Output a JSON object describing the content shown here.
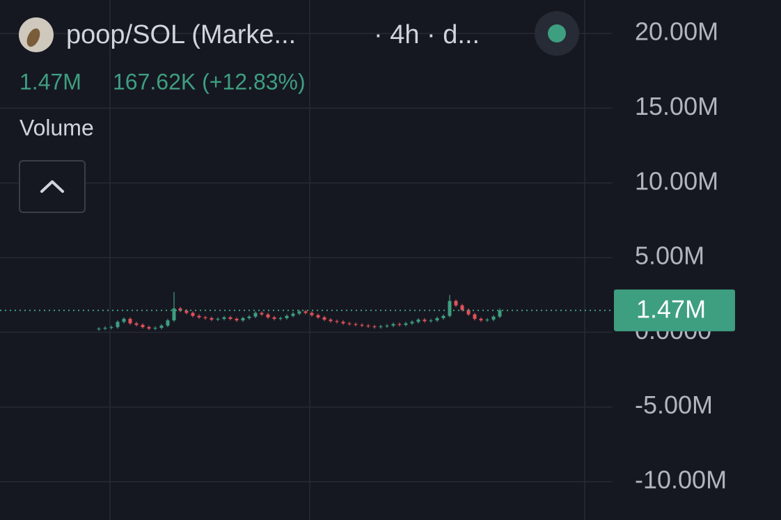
{
  "chart_data": {
    "type": "candlestick",
    "title": "poop/SOL (Marke...",
    "subtitle": "· 4h · d...",
    "header_price": "1.47M",
    "header_change": "167.62K (+12.83%)",
    "indicator": "Volume",
    "up_color": "#3e9e80",
    "down_color": "#e0525a",
    "grid": true,
    "ylim": [
      -12.56,
      22.24
    ],
    "yticks": [
      {
        "value": 20,
        "label": "20.00M"
      },
      {
        "value": 15,
        "label": "15.00M"
      },
      {
        "value": 10,
        "label": "10.00M"
      },
      {
        "value": 5,
        "label": "5.00M"
      },
      {
        "value": 0,
        "label": "0.0000"
      },
      {
        "value": -5,
        "label": "-5.00M"
      },
      {
        "value": -10,
        "label": "-10.00M"
      }
    ],
    "last_price": 1.47,
    "last_price_label": "1.47M",
    "open": [
      0.2,
      0.25,
      0.3,
      0.35,
      0.7,
      0.9,
      0.6,
      0.5,
      0.35,
      0.25,
      0.3,
      0.45,
      0.8,
      1.6,
      1.45,
      1.3,
      1.1,
      1.0,
      0.95,
      0.85,
      0.9,
      1.0,
      0.9,
      0.8,
      0.95,
      1.05,
      1.3,
      1.2,
      1.0,
      0.9,
      0.95,
      1.1,
      1.25,
      1.4,
      1.3,
      1.15,
      1.0,
      0.85,
      0.75,
      0.7,
      0.6,
      0.55,
      0.5,
      0.45,
      0.4,
      0.35,
      0.4,
      0.45,
      0.55,
      0.5,
      0.6,
      0.7,
      0.85,
      0.75,
      0.8,
      0.95,
      1.1,
      2.1,
      1.8,
      1.5,
      1.2,
      0.9,
      0.8,
      0.85,
      1.05
    ],
    "high": [
      0.35,
      0.4,
      0.45,
      0.8,
      1.0,
      1.0,
      0.7,
      0.6,
      0.45,
      0.4,
      0.55,
      0.9,
      2.7,
      1.7,
      1.55,
      1.4,
      1.2,
      1.1,
      1.05,
      1.0,
      1.1,
      1.1,
      1.0,
      1.05,
      1.15,
      1.4,
      1.4,
      1.3,
      1.1,
      1.05,
      1.2,
      1.35,
      1.5,
      1.5,
      1.4,
      1.25,
      1.1,
      0.95,
      0.85,
      0.8,
      0.7,
      0.65,
      0.6,
      0.55,
      0.5,
      0.5,
      0.55,
      0.65,
      0.65,
      0.7,
      0.8,
      0.95,
      0.95,
      0.9,
      1.05,
      1.2,
      2.5,
      2.2,
      1.9,
      1.6,
      1.3,
      1.0,
      0.95,
      1.15,
      1.6
    ],
    "low": [
      0.1,
      0.15,
      0.2,
      0.25,
      0.6,
      0.5,
      0.4,
      0.25,
      0.15,
      0.15,
      0.2,
      0.35,
      0.7,
      1.35,
      1.2,
      1.0,
      0.9,
      0.85,
      0.75,
      0.75,
      0.8,
      0.8,
      0.7,
      0.7,
      0.85,
      0.95,
      1.1,
      0.9,
      0.8,
      0.8,
      0.85,
      1.0,
      1.15,
      1.2,
      1.05,
      0.9,
      0.75,
      0.65,
      0.6,
      0.5,
      0.45,
      0.4,
      0.35,
      0.3,
      0.25,
      0.25,
      0.3,
      0.35,
      0.4,
      0.4,
      0.5,
      0.6,
      0.65,
      0.65,
      0.7,
      0.85,
      1.0,
      1.7,
      1.4,
      1.1,
      0.8,
      0.7,
      0.7,
      0.75,
      0.95
    ],
    "close": [
      0.25,
      0.3,
      0.35,
      0.7,
      0.9,
      0.6,
      0.5,
      0.35,
      0.25,
      0.3,
      0.45,
      0.8,
      1.6,
      1.45,
      1.3,
      1.1,
      1.0,
      0.95,
      0.85,
      0.9,
      1.0,
      0.9,
      0.8,
      0.95,
      1.05,
      1.3,
      1.2,
      1.0,
      0.9,
      0.95,
      1.1,
      1.25,
      1.4,
      1.3,
      1.15,
      1.0,
      0.85,
      0.75,
      0.7,
      0.6,
      0.55,
      0.5,
      0.45,
      0.4,
      0.35,
      0.4,
      0.45,
      0.55,
      0.5,
      0.6,
      0.7,
      0.85,
      0.75,
      0.8,
      0.95,
      1.1,
      2.1,
      1.8,
      1.5,
      1.2,
      0.9,
      0.8,
      0.85,
      1.05,
      1.47
    ]
  }
}
